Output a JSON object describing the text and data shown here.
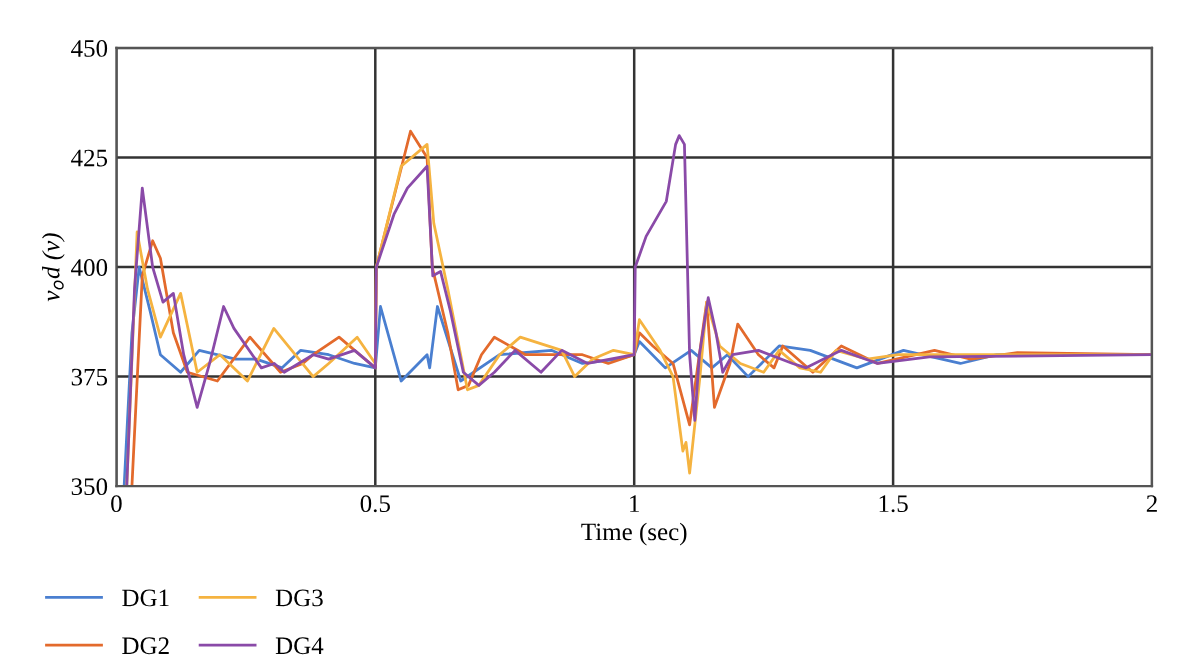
{
  "chart_data": {
    "type": "line",
    "xlabel": "Time (sec)",
    "ylabel": "v$_{o}$d (v)",
    "xlim": [
      0,
      2
    ],
    "ylim": [
      350,
      450
    ],
    "xticks": [
      0,
      0.5,
      1,
      1.5,
      2
    ],
    "yticks": [
      350,
      375,
      400,
      425,
      450
    ],
    "grid": true,
    "legend": "bottom left",
    "line_style": "solid",
    "marker": "none",
    "series": [
      {
        "name": "DG1",
        "color": "#4a7fd0",
        "x": [
          0.015,
          0.03,
          0.044,
          0.065,
          0.085,
          0.124,
          0.16,
          0.23,
          0.27,
          0.32,
          0.356,
          0.41,
          0.46,
          0.5,
          0.51,
          0.55,
          0.6,
          0.605,
          0.62,
          0.665,
          0.74,
          0.84,
          0.9,
          0.97,
          1.0,
          1.01,
          1.06,
          1.11,
          1.15,
          1.18,
          1.22,
          1.28,
          1.34,
          1.43,
          1.52,
          1.63,
          1.7,
          2.0
        ],
        "values": [
          350,
          385,
          400,
          390,
          380,
          376,
          381,
          379,
          379,
          377,
          381,
          380,
          378,
          377,
          391,
          374,
          380,
          377,
          391,
          374,
          380,
          381,
          378,
          379,
          380,
          383,
          377,
          381,
          377,
          380,
          375,
          382,
          381,
          377,
          381,
          378,
          380,
          380
        ]
      },
      {
        "name": "DG2",
        "color": "#e36a2c",
        "x": [
          0.03,
          0.05,
          0.07,
          0.085,
          0.11,
          0.137,
          0.195,
          0.258,
          0.317,
          0.36,
          0.38,
          0.43,
          0.5,
          0.502,
          0.568,
          0.6,
          0.61,
          0.64,
          0.66,
          0.68,
          0.705,
          0.73,
          0.79,
          0.9,
          0.95,
          1.0,
          1.01,
          1.036,
          1.075,
          1.107,
          1.14,
          1.155,
          1.185,
          1.2,
          1.24,
          1.27,
          1.287,
          1.345,
          1.4,
          1.47,
          1.58,
          1.65,
          1.74,
          2.0
        ],
        "values": [
          350,
          398,
          406,
          402,
          385,
          376,
          374,
          384,
          376,
          378,
          380,
          384,
          377,
          400,
          431,
          425,
          400,
          385,
          372,
          373,
          380,
          384,
          380,
          380,
          378,
          380,
          385,
          382,
          378,
          364,
          392,
          368,
          378,
          387,
          380,
          377,
          382,
          376,
          382,
          378,
          381,
          379,
          380.5,
          380
        ]
      },
      {
        "name": "DG3",
        "color": "#f5b340",
        "x": [
          0.02,
          0.04,
          0.06,
          0.085,
          0.124,
          0.156,
          0.2,
          0.253,
          0.304,
          0.38,
          0.41,
          0.465,
          0.5,
          0.502,
          0.55,
          0.6,
          0.613,
          0.64,
          0.678,
          0.7,
          0.74,
          0.78,
          0.86,
          0.885,
          0.92,
          0.96,
          1.0,
          1.01,
          1.05,
          1.075,
          1.094,
          1.1,
          1.107,
          1.127,
          1.14,
          1.165,
          1.205,
          1.25,
          1.28,
          1.32,
          1.36,
          1.39,
          1.45,
          1.51,
          2.0
        ],
        "values": [
          350,
          408,
          395,
          384,
          394,
          376,
          380,
          374,
          386,
          375,
          378,
          384,
          378,
          400,
          423,
          428,
          410,
          395,
          372,
          373,
          380,
          384,
          381,
          375,
          379,
          381,
          380,
          388,
          381,
          375,
          358,
          360,
          353,
          375,
          392,
          382,
          378,
          376,
          381,
          377,
          376,
          381,
          379,
          380,
          380
        ]
      },
      {
        "name": "DG4",
        "color": "#8a4aa8",
        "x": [
          0.02,
          0.035,
          0.05,
          0.07,
          0.09,
          0.11,
          0.13,
          0.156,
          0.18,
          0.207,
          0.227,
          0.28,
          0.305,
          0.324,
          0.38,
          0.41,
          0.46,
          0.5,
          0.502,
          0.536,
          0.562,
          0.6,
          0.611,
          0.626,
          0.645,
          0.67,
          0.7,
          0.73,
          0.77,
          0.82,
          0.86,
          0.91,
          1.0,
          1.002,
          1.023,
          1.062,
          1.08,
          1.087,
          1.097,
          1.107,
          1.117,
          1.126,
          1.143,
          1.158,
          1.171,
          1.19,
          1.24,
          1.306,
          1.332,
          1.4,
          1.47,
          1.57,
          2.0
        ],
        "values": [
          350,
          395,
          418,
          400,
          392,
          394,
          380,
          368,
          378,
          391,
          386,
          377,
          378,
          376,
          380,
          379,
          381,
          377,
          400,
          412,
          418,
          423,
          398,
          399,
          390,
          376,
          373,
          376,
          381,
          376,
          381,
          378,
          380,
          400,
          407,
          415,
          428,
          430,
          428,
          380,
          365,
          380,
          393,
          385,
          376,
          380,
          381,
          378,
          377,
          381,
          378,
          379.5,
          380
        ]
      }
    ]
  }
}
